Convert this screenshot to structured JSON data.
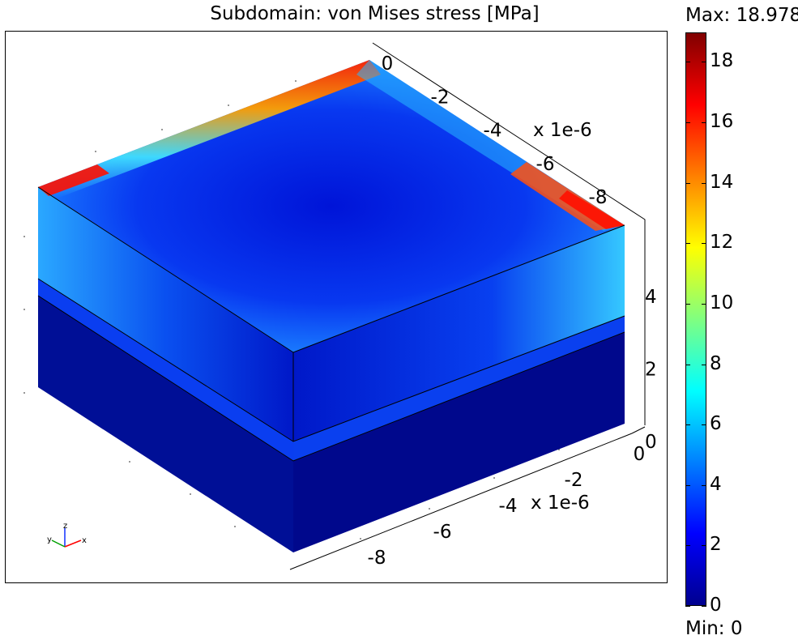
{
  "chart_data": {
    "type": "heatmap",
    "title": "Subdomain: von Mises stress [MPa]",
    "colorbar": {
      "max_label": "Max: 18.978",
      "min_label": "Min: 0",
      "max": 18.978,
      "min": 0,
      "ticks": [
        0,
        2,
        4,
        6,
        8,
        10,
        12,
        14,
        16,
        18
      ],
      "colormap": "jet"
    },
    "axes": {
      "x": {
        "ticks": [
          0,
          -2,
          -4,
          -6,
          -8
        ],
        "multiplier": "x 1e-6"
      },
      "y": {
        "ticks": [
          0,
          -2,
          -4,
          -6,
          -8
        ],
        "multiplier": "x 1e-6"
      },
      "z": {
        "ticks": [
          0,
          2,
          4
        ]
      }
    },
    "orientation_triad": {
      "x": "x",
      "y": "y",
      "z": "z"
    }
  }
}
